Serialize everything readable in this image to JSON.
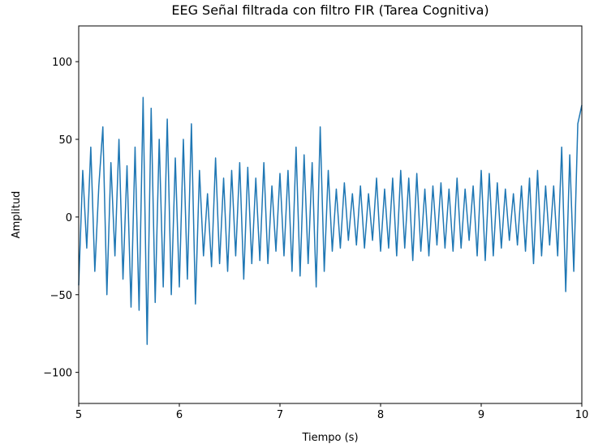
{
  "chart_data": {
    "type": "line",
    "title": "EEG Señal filtrada con filtro FIR (Tarea Cognitiva)",
    "x_label": "Tiempo (s)",
    "y_label": "Amplitud",
    "xlim": [
      5,
      10
    ],
    "ylim": [
      -120,
      123
    ],
    "xticks": [
      5,
      6,
      7,
      8,
      9,
      10
    ],
    "yticks": [
      {
        "value": -100,
        "label": "−100"
      },
      {
        "value": -50,
        "label": "−50"
      },
      0,
      50,
      100
    ],
    "x": [
      5.0,
      5.04,
      5.08,
      5.12,
      5.16,
      5.2,
      5.24,
      5.28,
      5.32,
      5.36,
      5.4,
      5.44,
      5.48,
      5.52,
      5.56,
      5.6,
      5.64,
      5.68,
      5.72,
      5.76,
      5.8,
      5.84,
      5.88,
      5.92,
      5.96,
      6.0,
      6.04,
      6.08,
      6.12,
      6.16,
      6.2,
      6.24,
      6.28,
      6.32,
      6.36,
      6.4,
      6.44,
      6.48,
      6.52,
      6.56,
      6.6,
      6.64,
      6.68,
      6.72,
      6.76,
      6.8,
      6.84,
      6.88,
      6.92,
      6.96,
      7.0,
      7.04,
      7.08,
      7.12,
      7.16,
      7.2,
      7.24,
      7.28,
      7.32,
      7.36,
      7.4,
      7.44,
      7.48,
      7.52,
      7.56,
      7.6,
      7.64,
      7.68,
      7.72,
      7.76,
      7.8,
      7.84,
      7.88,
      7.92,
      7.96,
      8.0,
      8.04,
      8.08,
      8.12,
      8.16,
      8.2,
      8.24,
      8.28,
      8.32,
      8.36,
      8.4,
      8.44,
      8.48,
      8.52,
      8.56,
      8.6,
      8.64,
      8.68,
      8.72,
      8.76,
      8.8,
      8.84,
      8.88,
      8.92,
      8.96,
      9.0,
      9.04,
      9.08,
      9.12,
      9.16,
      9.2,
      9.24,
      9.28,
      9.32,
      9.36,
      9.4,
      9.44,
      9.48,
      9.52,
      9.56,
      9.6,
      9.64,
      9.68,
      9.72,
      9.76,
      9.8,
      9.84,
      9.88,
      9.92,
      9.96,
      10.0
    ],
    "series": [
      {
        "color": "#1f77b4",
        "values": [
          -44,
          30,
          -20,
          45,
          -35,
          20,
          58,
          -50,
          35,
          -25,
          50,
          -40,
          33,
          -58,
          45,
          -60,
          77,
          -82,
          70,
          -55,
          50,
          -45,
          63,
          -50,
          38,
          -45,
          50,
          -40,
          60,
          -56,
          30,
          -25,
          15,
          -32,
          38,
          -30,
          25,
          -35,
          30,
          -25,
          35,
          -40,
          32,
          -30,
          25,
          -28,
          35,
          -30,
          20,
          -22,
          28,
          -25,
          30,
          -35,
          45,
          -38,
          40,
          -30,
          35,
          -45,
          58,
          -35,
          30,
          -22,
          18,
          -20,
          22,
          -15,
          15,
          -18,
          20,
          -20,
          15,
          -15,
          25,
          -22,
          18,
          -20,
          25,
          -25,
          30,
          -20,
          25,
          -28,
          28,
          -22,
          18,
          -25,
          20,
          -18,
          22,
          -20,
          18,
          -22,
          25,
          -20,
          18,
          -15,
          20,
          -25,
          30,
          -28,
          28,
          -25,
          22,
          -20,
          18,
          -15,
          15,
          -18,
          20,
          -22,
          25,
          -30,
          30,
          -25,
          20,
          -18,
          20,
          -25,
          45,
          -48,
          40,
          -35,
          60,
          72
        ]
      }
    ]
  }
}
